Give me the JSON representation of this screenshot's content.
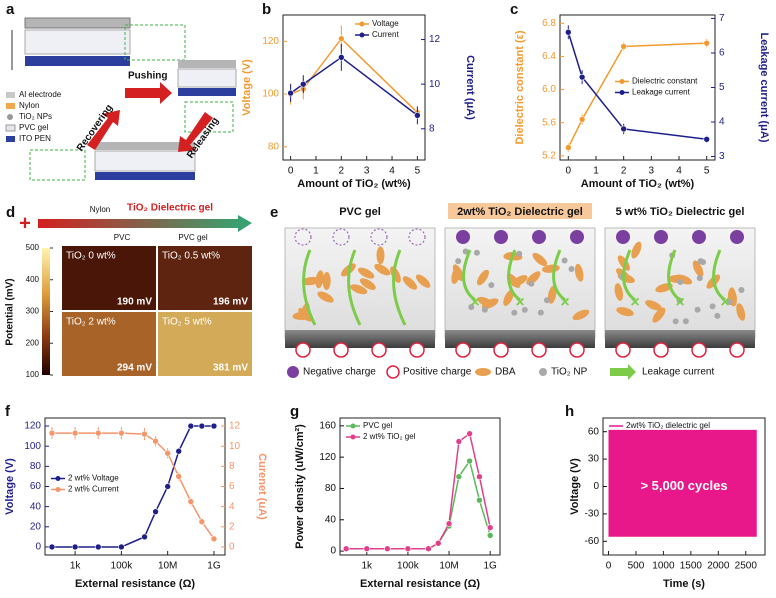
{
  "panel_a": {
    "letter": "a",
    "legend": [
      "Al electrode",
      "Nylon",
      "TiO₂ NPs",
      "PVC gel",
      "ITO PEN"
    ],
    "arrows": [
      "Pushing",
      "Releasing",
      "Recovering"
    ]
  },
  "panel_d": {
    "letter": "d",
    "nylon": "Nylon",
    "gel": "TiO₂ Dielectric gel",
    "pvc": "PVC",
    "pvc_gel": "PVC gel",
    "ylabel": "Potential (mV)",
    "colorbar_lim": [
      100,
      500
    ],
    "colorbar_ticks": [
      500,
      400,
      300,
      200,
      100
    ],
    "images": [
      {
        "label": "TiO₂ 0 wt%",
        "value": "190 mV"
      },
      {
        "label": "TiO₂ 0.5 wt%",
        "value": "196 mV"
      },
      {
        "label": "TiO₂ 2 wt%",
        "value": "294 mV"
      },
      {
        "label": "TiO₂ 5 wt%",
        "value": "381 mV"
      }
    ]
  },
  "panel_e": {
    "letter": "e",
    "titles": [
      "PVC gel",
      "2wt% TiO₂ Dielectric gel",
      "5 wt% TiO₂ Dielectric gel"
    ],
    "legend": [
      "Negative charge",
      "Positive charge",
      "DBA",
      "TiO₂ NP",
      "Leakage current"
    ]
  },
  "chart_data": [
    {
      "type": "line",
      "letter": "b",
      "xlabel": "Amount of TiO₂ (wt%)",
      "ylabel": "Voltage (V)",
      "y2label": "Current (μA)",
      "x": [
        0,
        0.5,
        2,
        5
      ],
      "xlim": [
        -0.3,
        5.3
      ],
      "xticks": [
        0,
        1,
        2,
        3,
        4,
        5
      ],
      "ylim": [
        75,
        130
      ],
      "yticks": [
        80,
        100,
        120
      ],
      "y2lim": [
        6.6,
        13.1
      ],
      "y2ticks": [
        8,
        10,
        12
      ],
      "legend": "upper right",
      "series": [
        {
          "name": "Voltage",
          "color": "#f39a2e",
          "values": [
            100,
            102,
            121,
            93
          ],
          "errors": [
            4,
            4,
            5,
            2
          ]
        },
        {
          "name": "Current",
          "color": "#1f1f8a",
          "axis": "y2",
          "values": [
            9.6,
            10,
            11.2,
            8.6
          ],
          "errors": [
            0.4,
            0.4,
            0.6,
            0.4
          ]
        }
      ]
    },
    {
      "type": "line",
      "letter": "c",
      "xlabel": "Amount of TiO₂ (wt%)",
      "ylabel": "Dielectric constant (ε)",
      "y2label": "Leakage current (μA)",
      "x": [
        0,
        0.5,
        2,
        5
      ],
      "xlim": [
        -0.3,
        5.3
      ],
      "xticks": [
        0,
        1,
        2,
        3,
        4,
        5
      ],
      "ylim": [
        5.15,
        6.9
      ],
      "yticks": [
        5.2,
        5.6,
        {
          "value": 6,
          "label": "6.0"
        },
        6.4,
        6.8
      ],
      "y2lim": [
        2.9,
        7.1
      ],
      "y2ticks": [
        3,
        4,
        5,
        6,
        7
      ],
      "legend": "center right",
      "series": [
        {
          "name": "Dielectric constant",
          "color": "#f39a2e",
          "values": [
            5.3,
            5.64,
            6.52,
            6.56
          ],
          "errors": [
            0.05,
            0.06,
            0.05,
            0.05
          ]
        },
        {
          "name": "Leakage current",
          "color": "#1f1f8a",
          "axis": "y2",
          "values": [
            6.6,
            5.3,
            3.8,
            3.5
          ],
          "errors": [
            0.2,
            0.2,
            0.15,
            0.1
          ]
        }
      ]
    },
    {
      "type": "line",
      "letter": "f",
      "xlabel": "External resistance (Ω)",
      "ylabel": "Voltage (V)",
      "y2label": "Curenet (uA)",
      "xscale": "log",
      "x": [
        100,
        1000,
        10000,
        100000,
        1000000,
        3000000,
        10000000,
        30000000,
        100000000,
        300000000,
        1000000000
      ],
      "xlim": [
        50,
        3000000000
      ],
      "xticks": [
        {
          "value": 1000,
          "label": "1k"
        },
        {
          "value": 100000,
          "label": "100k"
        },
        {
          "value": 10000000,
          "label": "10M"
        },
        {
          "value": 1000000000,
          "label": "1G"
        }
      ],
      "ylim": [
        -8,
        128
      ],
      "yticks": [
        0,
        20,
        40,
        60,
        80,
        100,
        120
      ],
      "y2lim": [
        -0.8,
        12.8
      ],
      "y2ticks": [
        0,
        2,
        4,
        6,
        8,
        10,
        12
      ],
      "legend": "center left",
      "series": [
        {
          "name": "2 wt% Voltage",
          "color": "#1f1f8a",
          "values": [
            0,
            0,
            0,
            0,
            10,
            35,
            60,
            95,
            120,
            120,
            120
          ]
        },
        {
          "name": "2 wt% Current",
          "color": "#f4956a",
          "axis": "y2",
          "values": [
            11.3,
            11.3,
            11.3,
            11.3,
            11.2,
            10.5,
            9.3,
            7,
            4.5,
            2.5,
            0.8
          ],
          "errors": [
            0.6,
            0.6,
            0.6,
            0.6,
            0.6,
            0.5,
            0.5,
            0.4,
            0.4,
            0.3,
            0.3
          ]
        }
      ]
    },
    {
      "type": "line",
      "letter": "g",
      "xlabel": "External resistance (Ω)",
      "ylabel": "Power density (uW/cm²)",
      "xscale": "log",
      "x": [
        100,
        1000,
        10000,
        100000,
        1000000,
        3000000,
        10000000,
        30000000,
        100000000,
        300000000,
        1000000000
      ],
      "xlim": [
        50,
        3000000000
      ],
      "xticks": [
        {
          "value": 1000,
          "label": "1k"
        },
        {
          "value": 100000,
          "label": "100k"
        },
        {
          "value": 10000000,
          "label": "10M"
        },
        {
          "value": 1000000000,
          "label": "1G"
        }
      ],
      "ylim": [
        -5,
        170
      ],
      "yticks": [
        0,
        40,
        80,
        120,
        160
      ],
      "legend": "upper left",
      "series": [
        {
          "name": "PVC gel",
          "color": "#5cb85c",
          "values": [
            3,
            3,
            3,
            3,
            3,
            10,
            32,
            95,
            115,
            65,
            20
          ]
        },
        {
          "name": "2 wt% TiO₂ gel",
          "color": "#e0408a",
          "values": [
            3,
            3,
            3,
            3,
            3,
            10,
            35,
            140,
            150,
            95,
            30
          ]
        }
      ]
    },
    {
      "type": "area",
      "letter": "h",
      "xlabel": "Time (s)",
      "ylabel": "Voltage (V)",
      "annotation": "> 5,000 cycles",
      "x": [
        0,
        2700
      ],
      "xlim": [
        -100,
        2850
      ],
      "xticks": [
        0,
        500,
        1000,
        1500,
        2000,
        2500
      ],
      "ylim": [
        -75,
        75
      ],
      "yticks": [
        -60,
        -30,
        0,
        30,
        60
      ],
      "legend": "upper left",
      "series": [
        {
          "name": "2wt% TiO₂ dielectric gel",
          "color": "#e8178a",
          "values": [
            62,
            62
          ],
          "lower": [
            -55,
            -55
          ]
        }
      ]
    }
  ]
}
